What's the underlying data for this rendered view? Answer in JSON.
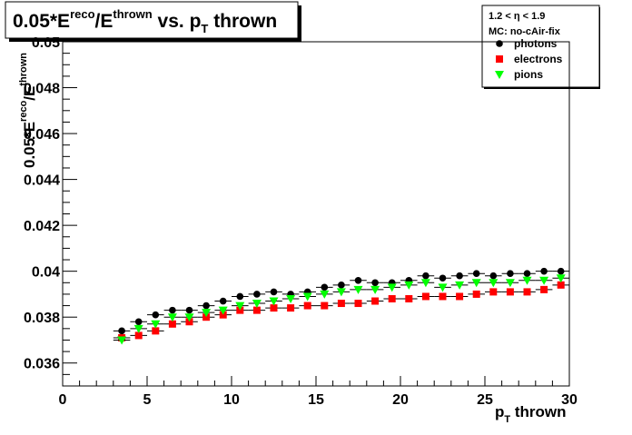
{
  "chart_data": {
    "type": "scatter",
    "title_parts": {
      "prefix": "0.05*E",
      "sup1": "reco",
      "mid": "/E",
      "sup2": "thrown",
      "vs": " vs. p",
      "sub": "T",
      "suffix": " thrown"
    },
    "xlabel": {
      "main": "p",
      "sub": "T",
      "rest": " thrown"
    },
    "ylabel": {
      "main": "0.05*E",
      "sup": "reco",
      "mid": "/E",
      "sup2": "thrown"
    },
    "xlim": [
      0,
      30
    ],
    "ylim": [
      0.035,
      0.05
    ],
    "x_ticks": [
      0,
      5,
      10,
      15,
      20,
      25,
      30
    ],
    "x_tick_labels": [
      "0",
      "5",
      "10",
      "15",
      "20",
      "25",
      "30"
    ],
    "y_ticks": [
      0.036,
      0.038,
      0.04,
      0.042,
      0.044,
      0.046,
      0.048,
      0.05
    ],
    "y_tick_labels": [
      "0.036",
      "0.038",
      "0.04",
      "0.042",
      "0.044",
      "0.046",
      "0.048",
      "0.05"
    ],
    "grid": false,
    "legend_position": "top-right",
    "legend_header": [
      "1.2 < η < 1.9",
      "MC: no-cAir-fix"
    ],
    "x": [
      3.5,
      4.5,
      5.5,
      6.5,
      7.5,
      8.5,
      9.5,
      10.5,
      11.5,
      12.5,
      13.5,
      14.5,
      15.5,
      16.5,
      17.5,
      18.5,
      19.5,
      20.5,
      21.5,
      22.5,
      23.5,
      24.5,
      25.5,
      26.5,
      27.5,
      28.5,
      29.5
    ],
    "x_error": 0.5,
    "series": [
      {
        "name": "photons",
        "color": "#000000",
        "marker": "circle",
        "values": [
          0.0374,
          0.0378,
          0.0381,
          0.0383,
          0.0383,
          0.0385,
          0.0387,
          0.0389,
          0.039,
          0.0391,
          0.039,
          0.0391,
          0.0393,
          0.0394,
          0.0396,
          0.0395,
          0.0395,
          0.0396,
          0.0398,
          0.0397,
          0.0398,
          0.0399,
          0.0398,
          0.0399,
          0.0399,
          0.04,
          0.04
        ]
      },
      {
        "name": "electrons",
        "color": "#ff0000",
        "marker": "square",
        "values": [
          0.0371,
          0.0372,
          0.0374,
          0.0377,
          0.0378,
          0.038,
          0.0381,
          0.0383,
          0.0383,
          0.0384,
          0.0384,
          0.0385,
          0.0385,
          0.0386,
          0.0386,
          0.0387,
          0.0388,
          0.0388,
          0.0389,
          0.0389,
          0.0389,
          0.039,
          0.0391,
          0.0391,
          0.0391,
          0.0392,
          0.0394
        ]
      },
      {
        "name": "pions",
        "color": "#00ff00",
        "marker": "triangle-down",
        "values": [
          0.037,
          0.0375,
          0.0377,
          0.038,
          0.038,
          0.0382,
          0.0383,
          0.0385,
          0.0386,
          0.0387,
          0.0388,
          0.0389,
          0.039,
          0.0391,
          0.0392,
          0.0392,
          0.0393,
          0.0394,
          0.0395,
          0.0393,
          0.0394,
          0.0395,
          0.0395,
          0.0395,
          0.0396,
          0.0396,
          0.0397
        ]
      }
    ]
  }
}
